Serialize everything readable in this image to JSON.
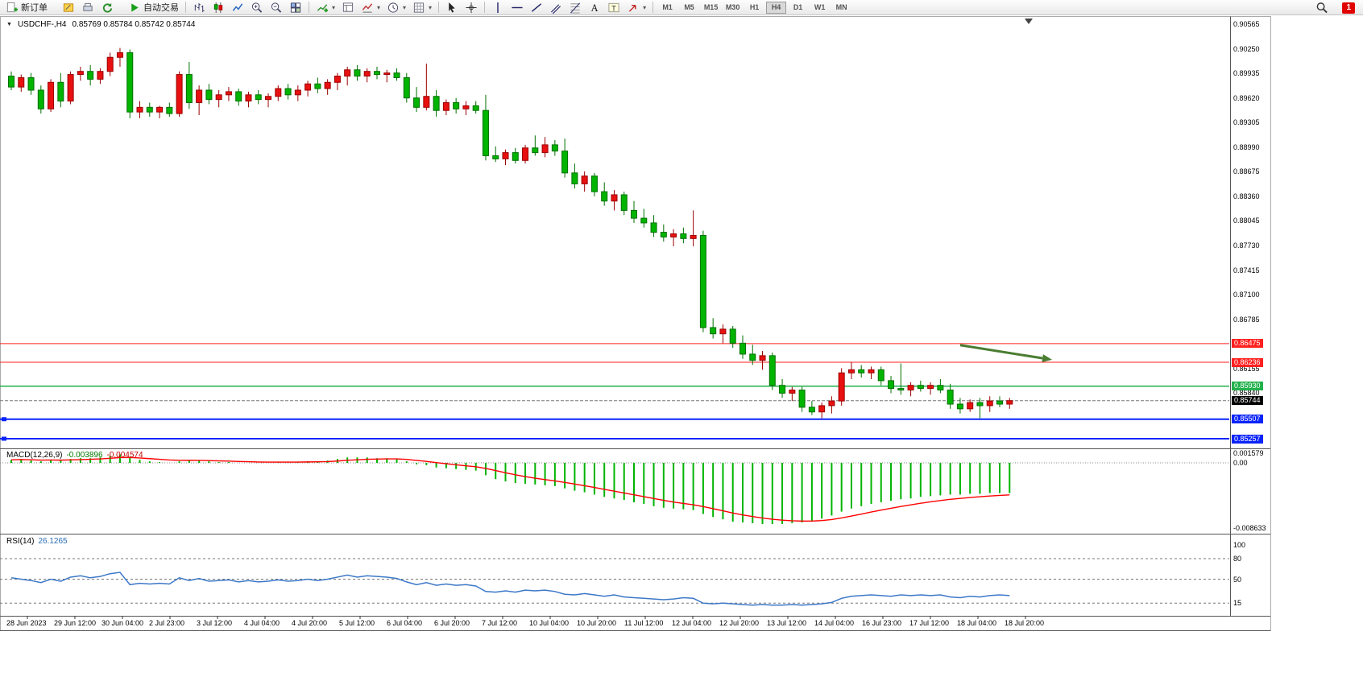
{
  "toolbar": {
    "notification_badge": "1",
    "buttons": [
      {
        "type": "btn",
        "name": "new-order",
        "icon": "neworder",
        "label": "新订单"
      },
      {
        "type": "gap"
      },
      {
        "type": "btn",
        "name": "metaeditor",
        "icon": "pencil"
      },
      {
        "type": "btn",
        "name": "print",
        "icon": "print"
      },
      {
        "type": "btn",
        "name": "refresh",
        "icon": "refresh"
      },
      {
        "type": "gap"
      },
      {
        "type": "btn",
        "name": "auto-trading",
        "icon": "play",
        "label": "自动交易"
      },
      {
        "type": "sep"
      },
      {
        "type": "btn",
        "name": "bar-chart-mode",
        "icon": "bars"
      },
      {
        "type": "btn",
        "name": "candlestick-mode",
        "icon": "candles"
      },
      {
        "type": "btn",
        "name": "line-chart-mode",
        "icon": "linechart"
      },
      {
        "type": "btn",
        "name": "zoom-in",
        "icon": "zoomin"
      },
      {
        "type": "btn",
        "name": "zoom-out",
        "icon": "zoomout"
      },
      {
        "type": "btn",
        "name": "tile-windows",
        "icon": "tiles"
      },
      {
        "type": "sep"
      },
      {
        "type": "btn",
        "name": "new-chart",
        "icon": "indicator",
        "dd": true
      },
      {
        "type": "btn",
        "name": "profiles",
        "icon": "template"
      },
      {
        "type": "btn",
        "name": "indicators-list",
        "icon": "indicator2",
        "dd": true
      },
      {
        "type": "btn",
        "name": "periods",
        "icon": "clock",
        "dd": true
      },
      {
        "type": "btn",
        "name": "templates",
        "icon": "grid",
        "dd": true
      },
      {
        "type": "sep"
      },
      {
        "type": "btn",
        "name": "cursor",
        "icon": "cursor"
      },
      {
        "type": "btn",
        "name": "crosshair",
        "icon": "crosshair"
      },
      {
        "type": "sep"
      },
      {
        "type": "btn",
        "name": "vertical-line",
        "icon": "vline"
      },
      {
        "type": "btn",
        "name": "horizontal-line",
        "icon": "hline"
      },
      {
        "type": "btn",
        "name": "trendline",
        "icon": "tline"
      },
      {
        "type": "btn",
        "name": "equidistant-channel",
        "icon": "channel"
      },
      {
        "type": "btn",
        "name": "fibonacci",
        "icon": "fibo"
      },
      {
        "type": "btn",
        "name": "text",
        "icon": "textA"
      },
      {
        "type": "btn",
        "name": "text-label",
        "icon": "textT"
      },
      {
        "type": "btn",
        "name": "arrow-objects",
        "icon": "arrowobj",
        "dd": true
      },
      {
        "type": "sep"
      }
    ],
    "timeframes": [
      {
        "label": "M1"
      },
      {
        "label": "M5"
      },
      {
        "label": "M15"
      },
      {
        "label": "M30"
      },
      {
        "label": "H1"
      },
      {
        "label": "H4",
        "active": true
      },
      {
        "label": "D1"
      },
      {
        "label": "W1"
      },
      {
        "label": "MN"
      }
    ]
  },
  "chart": {
    "title_symbol": "USDCHF-,H4",
    "title_quotes": "0.85769 0.85784 0.85742 0.85744"
  },
  "chart_data": {
    "type": "candlestick",
    "symbol": "USDCHF-",
    "timeframe": "H4",
    "quote": {
      "open": "0.85769",
      "high": "0.85784",
      "low": "0.85742",
      "close": "0.85744"
    },
    "colors": {
      "bull": "#e81010",
      "bull_stroke": "#9b0000",
      "bear": "#00b400",
      "bear_stroke": "#007000",
      "macd_hist": "#00b400",
      "macd_signal": "#ff0000",
      "rsi": "#3c78c8",
      "level_red": "#ff2020",
      "level_green": "#22b14c",
      "level_blue": "#0b24fb",
      "current_price": "#000000",
      "arrow": "#4a7d32"
    },
    "price_axis": {
      "max": 0.90565,
      "min": 0.85257,
      "ticks": [
        "0.90565",
        "0.90250",
        "0.89935",
        "0.89620",
        "0.89305",
        "0.88990",
        "0.88675",
        "0.88360",
        "0.88045",
        "0.87730",
        "0.87415",
        "0.87100",
        "0.86785",
        "0.86155",
        "0.85840"
      ],
      "badges": [
        {
          "label": "0.86475",
          "color": "#ff2020"
        },
        {
          "label": "0.86236",
          "color": "#ff2020"
        },
        {
          "label": "0.85930",
          "color": "#22b14c"
        },
        {
          "label": "0.85744",
          "color": "#000000"
        },
        {
          "label": "0.85507",
          "color": "#0b24fb"
        },
        {
          "label": "0.85257",
          "color": "#0b24fb"
        }
      ]
    },
    "levels": [
      {
        "price": 0.86475,
        "color": "#ff2020",
        "width": 1,
        "style": "solid"
      },
      {
        "price": 0.86236,
        "color": "#ff2020",
        "width": 1,
        "style": "solid"
      },
      {
        "price": 0.8593,
        "color": "#22b14c",
        "width": 1.5,
        "style": "solid"
      },
      {
        "price": 0.85744,
        "color": "#777777",
        "width": 1,
        "style": "dash"
      },
      {
        "price": 0.85507,
        "color": "#0b24fb",
        "width": 2,
        "style": "solid",
        "handle": true
      },
      {
        "price": 0.85257,
        "color": "#0b24fb",
        "width": 2,
        "style": "solid",
        "handle": true
      }
    ],
    "annotation_arrow": {
      "from": {
        "index": 96,
        "price": 0.86455
      },
      "to": {
        "index": 105.3,
        "price": 0.86268
      },
      "color": "#4a7d32"
    },
    "candles": [
      [
        0.899,
        0.8996,
        0.8972,
        0.8976
      ],
      [
        0.8976,
        0.8992,
        0.897,
        0.8988
      ],
      [
        0.8988,
        0.8994,
        0.8966,
        0.8972
      ],
      [
        0.8972,
        0.8978,
        0.8942,
        0.8948
      ],
      [
        0.8948,
        0.8986,
        0.8944,
        0.8982
      ],
      [
        0.8982,
        0.8994,
        0.895,
        0.8958
      ],
      [
        0.8958,
        0.8996,
        0.8954,
        0.8992
      ],
      [
        0.8992,
        0.9002,
        0.8984,
        0.8996
      ],
      [
        0.8996,
        0.9004,
        0.8978,
        0.8986
      ],
      [
        0.8986,
        0.9,
        0.898,
        0.8996
      ],
      [
        0.8996,
        0.902,
        0.899,
        0.9014
      ],
      [
        0.9014,
        0.9026,
        0.9002,
        0.902
      ],
      [
        0.902,
        0.9024,
        0.8936,
        0.8944
      ],
      [
        0.8944,
        0.8958,
        0.8936,
        0.895
      ],
      [
        0.895,
        0.8956,
        0.8938,
        0.8944
      ],
      [
        0.8944,
        0.8952,
        0.8936,
        0.895
      ],
      [
        0.895,
        0.8956,
        0.8938,
        0.8942
      ],
      [
        0.8942,
        0.8996,
        0.8938,
        0.8992
      ],
      [
        0.8992,
        0.9008,
        0.8948,
        0.8956
      ],
      [
        0.8956,
        0.8978,
        0.894,
        0.8972
      ],
      [
        0.8972,
        0.898,
        0.8954,
        0.896
      ],
      [
        0.896,
        0.8972,
        0.895,
        0.8966
      ],
      [
        0.8966,
        0.8976,
        0.8958,
        0.897
      ],
      [
        0.897,
        0.8974,
        0.8952,
        0.8958
      ],
      [
        0.8958,
        0.897,
        0.895,
        0.8966
      ],
      [
        0.8966,
        0.8972,
        0.8954,
        0.896
      ],
      [
        0.896,
        0.8968,
        0.895,
        0.8964
      ],
      [
        0.8964,
        0.8978,
        0.8958,
        0.8974
      ],
      [
        0.8974,
        0.898,
        0.896,
        0.8966
      ],
      [
        0.8966,
        0.8978,
        0.8958,
        0.8972
      ],
      [
        0.8972,
        0.8984,
        0.8964,
        0.898
      ],
      [
        0.898,
        0.8988,
        0.8968,
        0.8974
      ],
      [
        0.8974,
        0.8986,
        0.8966,
        0.8982
      ],
      [
        0.8982,
        0.8994,
        0.8972,
        0.899
      ],
      [
        0.899,
        0.9002,
        0.8978,
        0.8998
      ],
      [
        0.8998,
        0.9004,
        0.8984,
        0.899
      ],
      [
        0.899,
        0.9,
        0.8982,
        0.8996
      ],
      [
        0.8996,
        0.9002,
        0.8986,
        0.8992
      ],
      [
        0.8992,
        0.8998,
        0.8982,
        0.8994
      ],
      [
        0.8994,
        0.9,
        0.8984,
        0.8988
      ],
      [
        0.8988,
        0.8994,
        0.8956,
        0.8962
      ],
      [
        0.8962,
        0.8976,
        0.8944,
        0.895
      ],
      [
        0.895,
        0.9006,
        0.8946,
        0.8964
      ],
      [
        0.8964,
        0.8972,
        0.8938,
        0.8946
      ],
      [
        0.8946,
        0.896,
        0.894,
        0.8956
      ],
      [
        0.8956,
        0.8962,
        0.8942,
        0.8948
      ],
      [
        0.8948,
        0.8958,
        0.894,
        0.8952
      ],
      [
        0.8952,
        0.8958,
        0.8942,
        0.8946
      ],
      [
        0.8946,
        0.8966,
        0.8882,
        0.8888
      ],
      [
        0.8888,
        0.89,
        0.888,
        0.8884
      ],
      [
        0.8884,
        0.8896,
        0.8876,
        0.8892
      ],
      [
        0.8892,
        0.8898,
        0.8878,
        0.8882
      ],
      [
        0.8882,
        0.8902,
        0.8878,
        0.8898
      ],
      [
        0.8898,
        0.8914,
        0.8888,
        0.8892
      ],
      [
        0.8892,
        0.8912,
        0.8886,
        0.8902
      ],
      [
        0.8902,
        0.8908,
        0.8888,
        0.8894
      ],
      [
        0.8894,
        0.891,
        0.886,
        0.8866
      ],
      [
        0.8866,
        0.8878,
        0.8846,
        0.8852
      ],
      [
        0.8852,
        0.8868,
        0.8842,
        0.8862
      ],
      [
        0.8862,
        0.8866,
        0.8836,
        0.8842
      ],
      [
        0.8842,
        0.8854,
        0.8824,
        0.883
      ],
      [
        0.883,
        0.8844,
        0.8818,
        0.8838
      ],
      [
        0.8838,
        0.8842,
        0.8812,
        0.8818
      ],
      [
        0.8818,
        0.883,
        0.8802,
        0.8808
      ],
      [
        0.8808,
        0.882,
        0.8796,
        0.8802
      ],
      [
        0.8802,
        0.8812,
        0.8784,
        0.879
      ],
      [
        0.879,
        0.88,
        0.8778,
        0.8784
      ],
      [
        0.8784,
        0.8794,
        0.8772,
        0.8788
      ],
      [
        0.8788,
        0.8796,
        0.8776,
        0.8782
      ],
      [
        0.8782,
        0.8818,
        0.8772,
        0.8786
      ],
      [
        0.8786,
        0.8792,
        0.8662,
        0.8668
      ],
      [
        0.8668,
        0.868,
        0.8654,
        0.866
      ],
      [
        0.866,
        0.8672,
        0.8648,
        0.8666
      ],
      [
        0.8666,
        0.867,
        0.8642,
        0.8648
      ],
      [
        0.8648,
        0.8658,
        0.8628,
        0.8634
      ],
      [
        0.8634,
        0.8646,
        0.862,
        0.8626
      ],
      [
        0.8626,
        0.8638,
        0.8614,
        0.8632
      ],
      [
        0.8632,
        0.8636,
        0.8588,
        0.8594
      ],
      [
        0.8594,
        0.8602,
        0.8578,
        0.8584
      ],
      [
        0.8584,
        0.8592,
        0.8574,
        0.8588
      ],
      [
        0.8588,
        0.8592,
        0.856,
        0.8566
      ],
      [
        0.8566,
        0.8574,
        0.8556,
        0.856
      ],
      [
        0.856,
        0.8572,
        0.8552,
        0.8568
      ],
      [
        0.8568,
        0.858,
        0.8558,
        0.8574
      ],
      [
        0.8574,
        0.8616,
        0.8568,
        0.861
      ],
      [
        0.861,
        0.8624,
        0.8602,
        0.8614
      ],
      [
        0.8614,
        0.862,
        0.8604,
        0.861
      ],
      [
        0.861,
        0.8618,
        0.8602,
        0.8614
      ],
      [
        0.8614,
        0.8618,
        0.8594,
        0.86
      ],
      [
        0.86,
        0.8606,
        0.8584,
        0.859
      ],
      [
        0.859,
        0.8622,
        0.8582,
        0.8588
      ],
      [
        0.8588,
        0.8598,
        0.858,
        0.8594
      ],
      [
        0.8594,
        0.86,
        0.8586,
        0.859
      ],
      [
        0.859,
        0.8598,
        0.8582,
        0.8594
      ],
      [
        0.8594,
        0.8602,
        0.8584,
        0.8588
      ],
      [
        0.8588,
        0.8596,
        0.8564,
        0.857
      ],
      [
        0.857,
        0.8578,
        0.8558,
        0.8564
      ],
      [
        0.8564,
        0.8576,
        0.856,
        0.8572
      ],
      [
        0.8572,
        0.8578,
        0.8552,
        0.8568
      ],
      [
        0.8568,
        0.858,
        0.856,
        0.8574
      ],
      [
        0.8574,
        0.858,
        0.8566,
        0.857
      ],
      [
        0.857,
        0.8578,
        0.8564,
        0.85744
      ]
    ],
    "macd": {
      "label": "MACD(12,26,9)",
      "value_main": "-0.003896",
      "value_signal": "-0.004574",
      "axis": [
        "0.001579",
        "0.00",
        "-0.008633"
      ],
      "range": {
        "max": 0.001579,
        "min": -0.008633
      },
      "histogram": [
        0.0004,
        0.0005,
        0.0003,
        0.0002,
        0.0004,
        0.0003,
        0.0005,
        0.0006,
        0.0006,
        0.0007,
        0.0009,
        0.0011,
        0.0007,
        0.0004,
        0.0002,
        0.0001,
        0.0,
        0.0002,
        0.0003,
        0.0003,
        0.0002,
        0.0001,
        0.0001,
        0.0,
        0.0,
        0.0,
        0.0,
        0.0001,
        0.0001,
        0.0001,
        0.0002,
        0.0002,
        0.0003,
        0.0005,
        0.0007,
        0.0007,
        0.0007,
        0.0006,
        0.0006,
        0.0005,
        0.0002,
        -0.0002,
        -0.0003,
        -0.0006,
        -0.0007,
        -0.0008,
        -0.0009,
        -0.001,
        -0.0016,
        -0.0021,
        -0.0024,
        -0.0026,
        -0.0027,
        -0.0028,
        -0.0029,
        -0.003,
        -0.0033,
        -0.0036,
        -0.0038,
        -0.0041,
        -0.0044,
        -0.0046,
        -0.0048,
        -0.0051,
        -0.0053,
        -0.0056,
        -0.0058,
        -0.0059,
        -0.006,
        -0.0061,
        -0.0066,
        -0.007,
        -0.0073,
        -0.0076,
        -0.0077,
        -0.0078,
        -0.0079,
        -0.0079,
        -0.0079,
        -0.0078,
        -0.0077,
        -0.0075,
        -0.0072,
        -0.0068,
        -0.0063,
        -0.0059,
        -0.0056,
        -0.0053,
        -0.0051,
        -0.0049,
        -0.0047,
        -0.0046,
        -0.0044,
        -0.0043,
        -0.0042,
        -0.0041,
        -0.0041,
        -0.004,
        -0.004,
        -0.0039,
        -0.0039,
        -0.0039
      ]
    },
    "rsi": {
      "label": "RSI(14)",
      "value_label": "26.1265",
      "axis": [
        "100",
        "80",
        "50",
        "15"
      ],
      "levels": [
        80,
        50,
        15
      ],
      "values": [
        52,
        50,
        48,
        45,
        50,
        47,
        53,
        55,
        52,
        54,
        58,
        60,
        42,
        44,
        43,
        44,
        43,
        52,
        48,
        51,
        47,
        48,
        49,
        46,
        48,
        46,
        47,
        49,
        47,
        48,
        50,
        48,
        50,
        53,
        56,
        53,
        55,
        54,
        53,
        51,
        46,
        42,
        45,
        41,
        43,
        41,
        42,
        40,
        32,
        31,
        33,
        31,
        34,
        33,
        34,
        32,
        28,
        27,
        29,
        27,
        25,
        27,
        24,
        23,
        22,
        21,
        20,
        21,
        23,
        22,
        15,
        14,
        15,
        14,
        13,
        12,
        13,
        12,
        12,
        13,
        12,
        13,
        14,
        16,
        22,
        25,
        26,
        27,
        26,
        25,
        27,
        26,
        27,
        26,
        27,
        24,
        23,
        25,
        24,
        26,
        27,
        26.1
      ]
    },
    "time_axis": {
      "labels": [
        "28 Jun 2023",
        "29 Jun 12:00",
        "30 Jun 04:00",
        "2 Jul 23:00",
        "3 Jul 12:00",
        "4 Jul 04:00",
        "4 Jul 20:00",
        "5 Jul 12:00",
        "6 Jul 04:00",
        "6 Jul 20:00",
        "7 Jul 12:00",
        "10 Jul 04:00",
        "10 Jul 20:00",
        "11 Jul 12:00",
        "12 Jul 04:00",
        "12 Jul 20:00",
        "13 Jul 12:00",
        "14 Jul 04:00",
        "16 Jul 23:00",
        "17 Jul 12:00",
        "18 Jul 04:00",
        "18 Jul 20:00"
      ]
    }
  }
}
